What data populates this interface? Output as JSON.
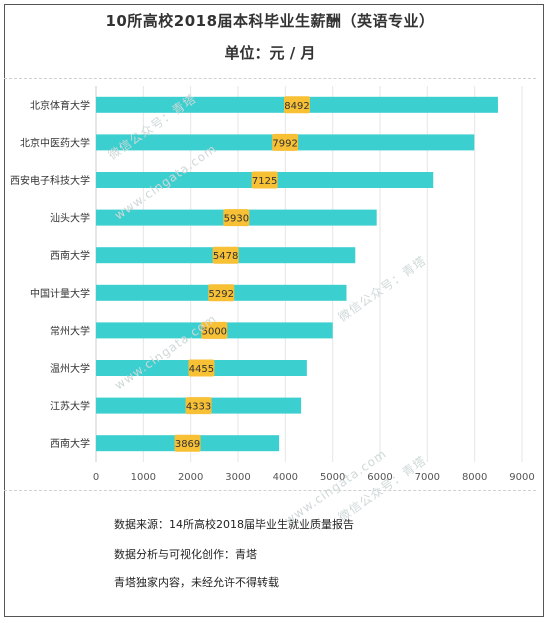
{
  "header": {
    "title": "10所高校2018届本科毕业生薪酬（英语专业）",
    "unit": "单位：元 / 月"
  },
  "notes": {
    "source": "数据来源：14所高校2018届毕业生就业质量报告",
    "credit": "数据分析与可视化创作：青塔",
    "rights": "青塔独家内容，未经允许不得转载"
  },
  "watermarks": [
    "微信公众号：青塔",
    "www.cingata.com",
    "微信公众号：青塔",
    "www.cingata.com",
    "www.cingata.com",
    "微信公众号：青塔"
  ],
  "colors": {
    "bar": "#3ccfcf",
    "label_bg": "#f7c035",
    "text": "#333333",
    "grid": "#e6e6e6"
  },
  "chart_data": {
    "type": "bar",
    "orientation": "horizontal",
    "categories": [
      "北京体育大学",
      "北京中医药大学",
      "西安电子科技大学",
      "汕头大学",
      "西南大学",
      "中国计量大学",
      "常州大学",
      "温州大学",
      "江苏大学",
      "西南大学"
    ],
    "values": [
      8492,
      7992,
      7125,
      5930,
      5478,
      5292,
      5000,
      4455,
      4333,
      3869
    ],
    "xlim": [
      0,
      9000
    ],
    "xticks": [
      0,
      1000,
      2000,
      3000,
      4000,
      5000,
      6000,
      7000,
      8000,
      9000
    ],
    "grid": true,
    "legend": "none"
  }
}
